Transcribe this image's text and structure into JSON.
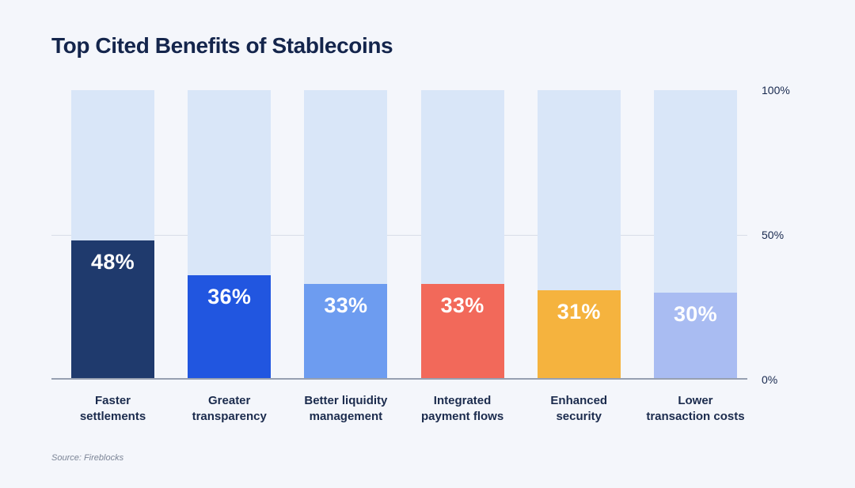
{
  "page": {
    "title": "Top Cited Benefits of Stablecoins",
    "source_note": "Source: Fireblocks"
  },
  "chart_data": {
    "type": "bar",
    "title": "Top Cited Benefits of Stablecoins",
    "categories": [
      "Faster settlements",
      "Greater transparency",
      "Better liquidity management",
      "Integrated payment flows",
      "Enhanced security",
      "Lower transaction costs"
    ],
    "category_lines": [
      [
        "Faster",
        "settlements"
      ],
      [
        "Greater",
        "transparency"
      ],
      [
        "Better liquidity",
        "management"
      ],
      [
        "Integrated",
        "payment flows"
      ],
      [
        "Enhanced",
        "security"
      ],
      [
        "Lower",
        "transaction costs"
      ]
    ],
    "values": [
      48,
      36,
      33,
      33,
      31,
      30
    ],
    "value_labels": [
      "48%",
      "36%",
      "33%",
      "33%",
      "31%",
      "30%"
    ],
    "bar_colors": [
      "#1f3a6d",
      "#2156e0",
      "#6d9cf0",
      "#f2695a",
      "#f5b33e",
      "#a9bcf2"
    ],
    "track_color": "#d9e6f8",
    "track_max": 100,
    "xlabel": "",
    "ylabel": "",
    "ylim": [
      0,
      100
    ],
    "yticks": [
      {
        "value": 100,
        "label": "100%"
      },
      {
        "value": 50,
        "label": "50%"
      },
      {
        "value": 0,
        "label": "0%"
      }
    ],
    "gridlines": [
      50
    ],
    "legend": "none",
    "grid": "horizontal line at 50%, solid baseline at 0%"
  },
  "colors": {
    "background": "#f4f6fb",
    "title_text": "#14254c",
    "category_text": "#1b2b4d",
    "tick_text": "#17284e",
    "value_text": "#ffffff",
    "gridline": "#d9dde7",
    "baseline": "#97a0b1",
    "source_text": "#7b8496"
  }
}
